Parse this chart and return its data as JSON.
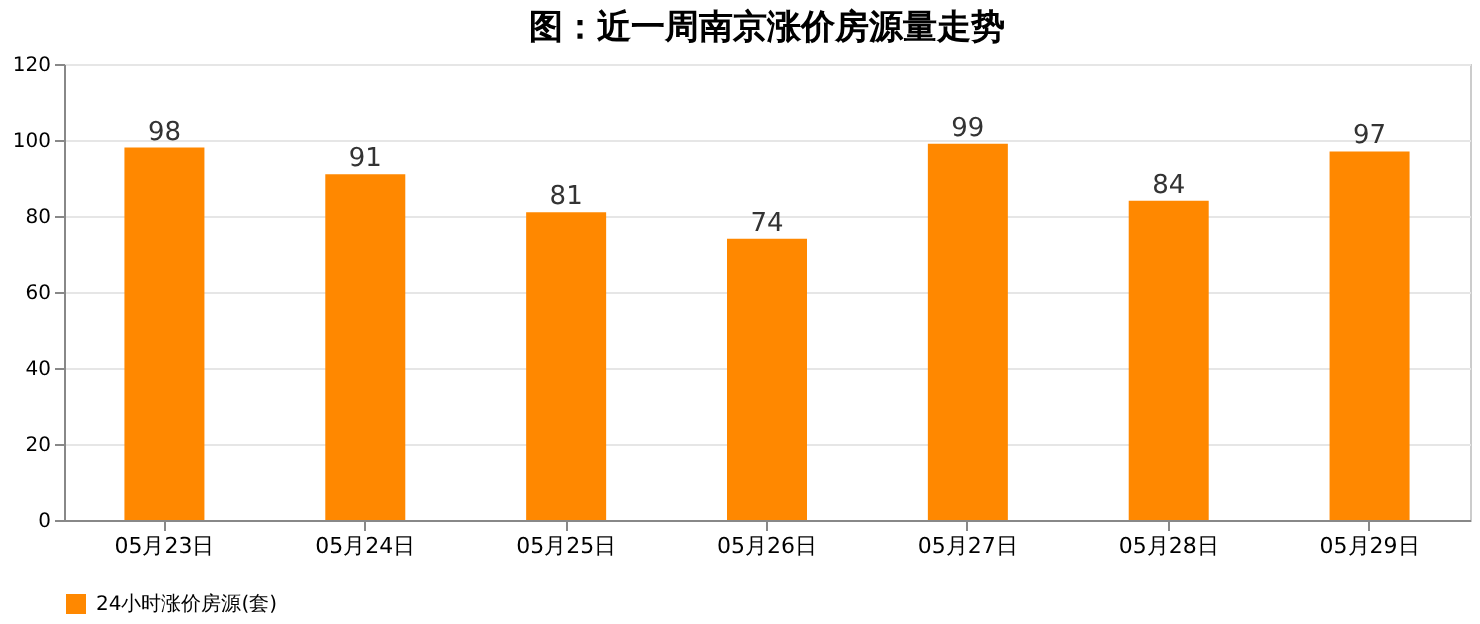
{
  "chart_data": {
    "type": "bar",
    "title": "图：近一周南京涨价房源量走势",
    "categories": [
      "05月23日",
      "05月24日",
      "05月25日",
      "05月26日",
      "05月27日",
      "05月28日",
      "05月29日"
    ],
    "series": [
      {
        "name": "24小时涨价房源(套)",
        "color": "#ff8800",
        "values": [
          98,
          91,
          81,
          74,
          99,
          84,
          97
        ]
      }
    ],
    "ylim": [
      0,
      120
    ],
    "yticks": [
      0,
      20,
      40,
      60,
      80,
      100,
      120
    ],
    "grid": "y",
    "legend": "bottom",
    "data_labels": true
  }
}
